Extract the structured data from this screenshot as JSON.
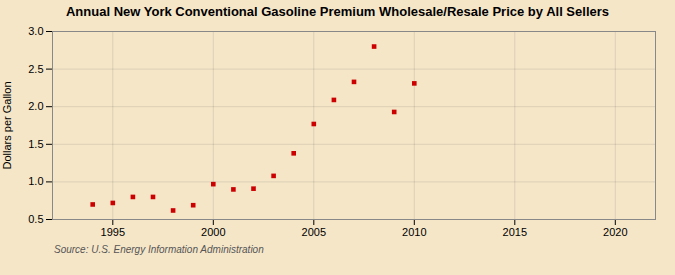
{
  "chart_data": {
    "type": "scatter",
    "title": "Annual New York Conventional Gasoline Premium Wholesale/Resale Price by All Sellers",
    "ylabel": "Dollars per Gallon",
    "source": "Source: U.S. Energy Information Administration",
    "x": [
      1994,
      1995,
      1996,
      1997,
      1998,
      1999,
      2000,
      2001,
      2002,
      2003,
      2004,
      2005,
      2006,
      2007,
      2008,
      2009,
      2010
    ],
    "values": [
      0.7,
      0.72,
      0.8,
      0.8,
      0.62,
      0.69,
      0.97,
      0.9,
      0.91,
      1.08,
      1.38,
      1.77,
      2.09,
      2.33,
      2.8,
      1.93,
      2.31
    ],
    "color": "#cc0000",
    "marker": "square",
    "xlim": [
      1992,
      2022
    ],
    "ylim": [
      0.5,
      3.0
    ],
    "xticks": [
      1995,
      2000,
      2005,
      2010,
      2015,
      2020
    ],
    "yticks": [
      0.5,
      {
        "value": 1.0,
        "label": "1.0"
      },
      1.5,
      {
        "value": 2.0,
        "label": "2.0"
      },
      2.5,
      {
        "value": 3.0,
        "label": "3.0"
      }
    ],
    "grid": true
  }
}
